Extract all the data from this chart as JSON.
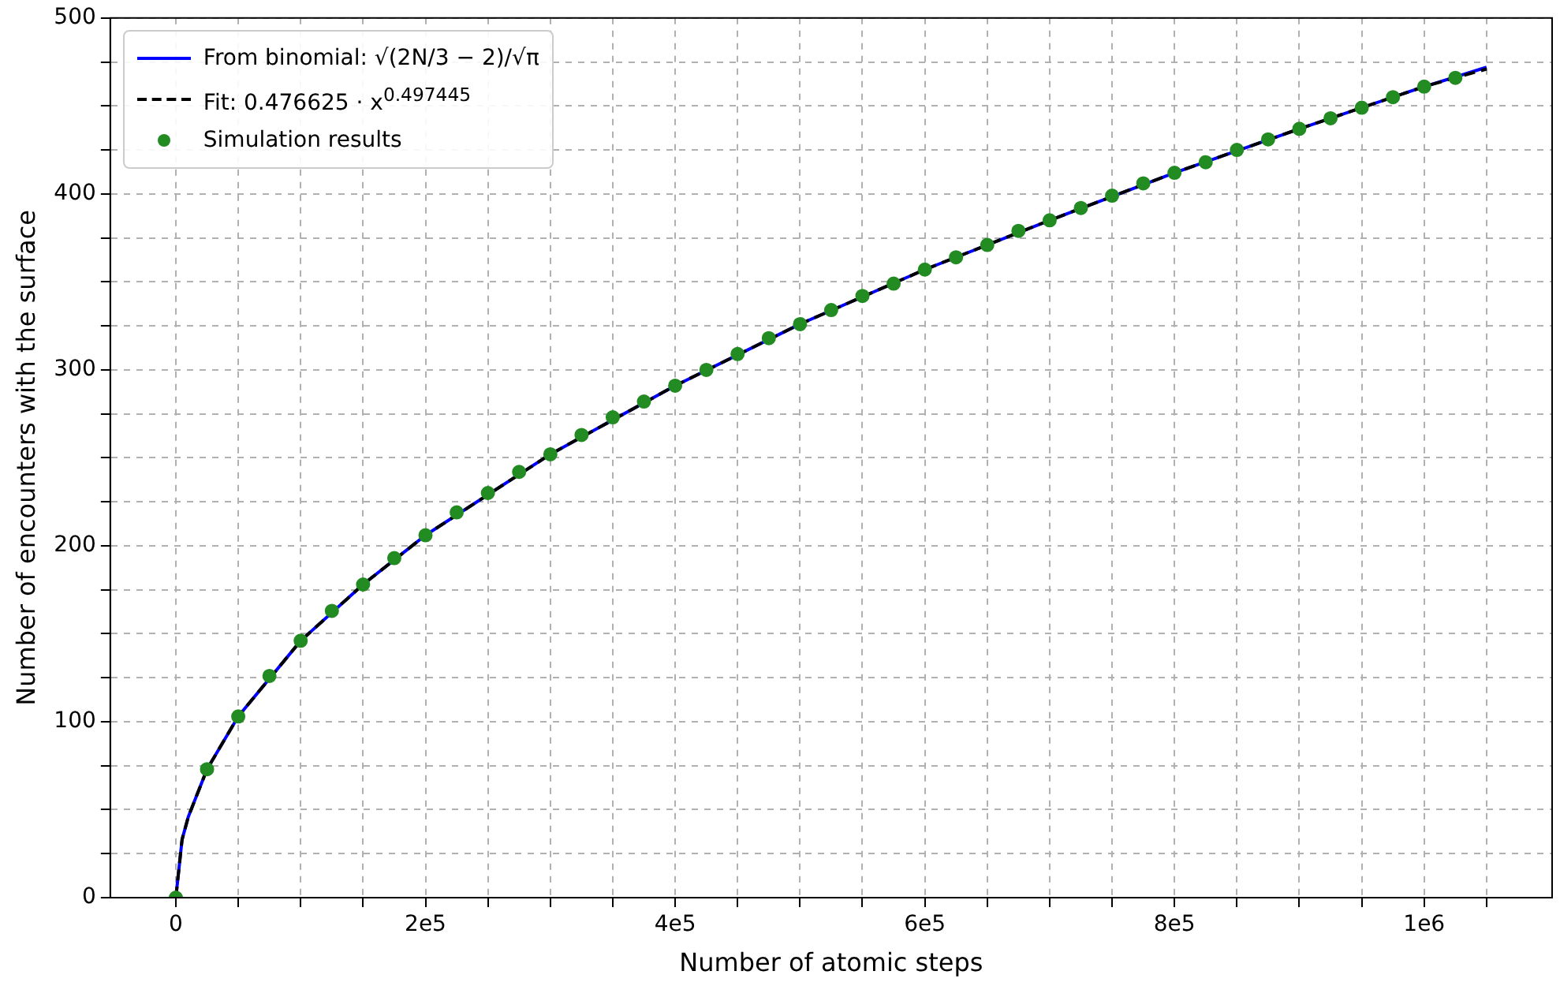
{
  "chart_data": {
    "type": "scatter",
    "xlabel": "Number of atomic steps",
    "ylabel": "Number of encounters with the surface",
    "xlim": [
      -52500,
      1102500
    ],
    "ylim": [
      0,
      500
    ],
    "xticks": [
      0,
      {
        "value": 50000,
        "label": null
      },
      {
        "value": 100000,
        "label": null
      },
      {
        "value": 150000,
        "label": null
      },
      {
        "value": 200000,
        "label": "2e5"
      },
      {
        "value": 250000,
        "label": null
      },
      {
        "value": 300000,
        "label": null
      },
      {
        "value": 350000,
        "label": null
      },
      {
        "value": 400000,
        "label": "4e5"
      },
      {
        "value": 450000,
        "label": null
      },
      {
        "value": 500000,
        "label": null
      },
      {
        "value": 550000,
        "label": null
      },
      {
        "value": 600000,
        "label": "6e5"
      },
      {
        "value": 650000,
        "label": null
      },
      {
        "value": 700000,
        "label": null
      },
      {
        "value": 750000,
        "label": null
      },
      {
        "value": 800000,
        "label": "8e5"
      },
      {
        "value": 850000,
        "label": null
      },
      {
        "value": 900000,
        "label": null
      },
      {
        "value": 950000,
        "label": null
      },
      {
        "value": 1000000,
        "label": "1e6"
      },
      {
        "value": 1050000,
        "label": null
      }
    ],
    "yticks": [
      0,
      {
        "value": 25,
        "label": null
      },
      {
        "value": 50,
        "label": null
      },
      {
        "value": 75,
        "label": null
      },
      100,
      {
        "value": 125,
        "label": null
      },
      {
        "value": 150,
        "label": null
      },
      {
        "value": 175,
        "label": null
      },
      200,
      {
        "value": 225,
        "label": null
      },
      {
        "value": 250,
        "label": null
      },
      {
        "value": 275,
        "label": null
      },
      300,
      {
        "value": 325,
        "label": null
      },
      {
        "value": 350,
        "label": null
      },
      {
        "value": 375,
        "label": null
      },
      400,
      {
        "value": 425,
        "label": null
      },
      {
        "value": 450,
        "label": null
      },
      {
        "value": 475,
        "label": null
      },
      500
    ],
    "grid": true,
    "legend": "top left",
    "series": [
      {
        "name": "From binomial: √(2N/3 − 2)/√π",
        "type": "line",
        "color": "#0000ff",
        "line_style": "solid",
        "marker": "none",
        "x": [
          0,
          5000,
          10000,
          25000,
          50000,
          100000,
          150000,
          200000,
          300000,
          400000,
          500000,
          600000,
          700000,
          800000,
          900000,
          1000000,
          1050000
        ],
        "values": [
          0,
          33,
          46,
          73,
          103,
          146,
          178,
          206,
          252,
          291,
          326,
          357,
          385,
          412,
          437,
          461,
          472
        ]
      },
      {
        "name": "Fit: 0.476625 · x$^{0.497445}$",
        "type": "line",
        "color": "#000000",
        "line_style": "dashed",
        "marker": "none",
        "x": [
          0,
          5000,
          10000,
          25000,
          50000,
          100000,
          150000,
          200000,
          300000,
          400000,
          500000,
          600000,
          700000,
          800000,
          900000,
          1000000,
          1050000
        ],
        "values": [
          0,
          33,
          46,
          73,
          103,
          146,
          178,
          206,
          252,
          291,
          326,
          357,
          385,
          412,
          437,
          461,
          471
        ]
      },
      {
        "name": "Simulation results",
        "color": "#228b22",
        "marker": "circle",
        "x": [
          0,
          25000,
          50000,
          75000,
          100000,
          125000,
          150000,
          175000,
          200000,
          225000,
          250000,
          275000,
          300000,
          325000,
          350000,
          375000,
          400000,
          425000,
          450000,
          475000,
          500000,
          525000,
          550000,
          575000,
          600000,
          625000,
          650000,
          675000,
          700000,
          725000,
          750000,
          775000,
          800000,
          825000,
          850000,
          875000,
          900000,
          925000,
          950000,
          975000,
          1000000,
          1025000
        ],
        "values": [
          0,
          73,
          103,
          126,
          146,
          163,
          178,
          193,
          206,
          219,
          230,
          242,
          252,
          263,
          273,
          282,
          291,
          300,
          309,
          318,
          326,
          334,
          342,
          349,
          357,
          364,
          371,
          379,
          385,
          392,
          399,
          406,
          412,
          418,
          425,
          431,
          437,
          443,
          449,
          455,
          461,
          466
        ]
      }
    ]
  }
}
